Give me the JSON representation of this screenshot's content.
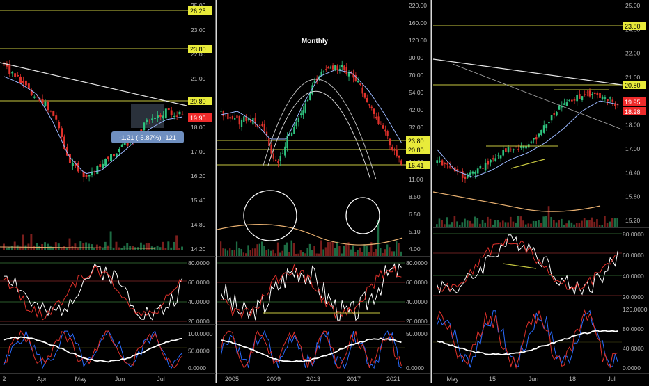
{
  "colors": {
    "background": "#000000",
    "divider": "#d9d9d9",
    "level_line": "#c8c840",
    "trend_line": "#e6e6e6",
    "candle_up": "#2ec27e",
    "candle_down": "#e0312b",
    "ma_fast": "#9bb8ff",
    "ma_slow": "#ffffff",
    "volume_ma": "#e8b070",
    "price_badge": "#e8eb3a",
    "last_price_badge": "#ef2b2b",
    "rsi_line": "#ffffff",
    "rsi_signal": "#e0312b",
    "stoch_k": "#2a6cff",
    "stoch_d": "#e0312b",
    "stoch_ma": "#ffffff",
    "axis_text": "#b8b8b8"
  },
  "chart_data": [
    {
      "id": "left",
      "type": "candlestick",
      "title": "",
      "x_ticks": [
        "2",
        "Apr",
        "May",
        "Jun",
        "Jul"
      ],
      "price_axis": [
        "25.00",
        "23.00",
        "22.00",
        "21.00",
        "19.00",
        "18.00",
        "17.00",
        "16.20",
        "15.40",
        "14.80",
        "14.20"
      ],
      "price_badges": [
        "26.25",
        "23.80",
        "20.80"
      ],
      "last_price": "19.95",
      "measure_label": "-1.21 (-5.87%) -121",
      "levels": [
        26.25,
        23.8,
        20.8
      ],
      "price_range": [
        14.2,
        26.25
      ],
      "rsi_axis": [
        "80.0000",
        "60.0000",
        "40.0000",
        "20.0000"
      ],
      "stoch_axis": [
        "100.0000",
        "50.0000",
        "0.0000"
      ]
    },
    {
      "id": "middle",
      "type": "candlestick",
      "title": "Monthly",
      "x_ticks": [
        "2005",
        "2009",
        "2013",
        "2017",
        "2021"
      ],
      "price_axis": [
        "220.00",
        "160.00",
        "120.00",
        "90.00",
        "70.00",
        "54.00",
        "42.00",
        "32.00",
        "18.00",
        "14.00",
        "11.00",
        "8.50",
        "6.50",
        "5.10",
        "4.00"
      ],
      "price_badges": [
        "23.80",
        "20.80",
        "16.41"
      ],
      "levels": [
        23.8,
        20.8,
        16.41
      ],
      "price_range": [
        4.0,
        220.0
      ],
      "rsi_axis": [
        "80.0000",
        "60.0000",
        "40.0000",
        "20.0000"
      ],
      "stoch_axis": [
        "50.0000",
        "0.0000"
      ]
    },
    {
      "id": "right",
      "type": "candlestick",
      "title": "",
      "x_ticks": [
        "May",
        "15",
        "Jun",
        "18",
        "Jul"
      ],
      "price_axis": [
        "25.00",
        "24.00",
        "22.00",
        "21.00",
        "19.00",
        "18.00",
        "17.00",
        "16.40",
        "15.80",
        "15.20"
      ],
      "price_badges": [
        "23.80",
        "20.80"
      ],
      "last_price": "19.95",
      "countdown": "18:28",
      "levels": [
        23.8,
        20.8
      ],
      "price_range": [
        15.2,
        25.0
      ],
      "rsi_axis": [
        "80.0000",
        "60.0000",
        "40.0000",
        "20.0000"
      ],
      "stoch_axis": [
        "120.0000",
        "80.0000",
        "40.0000",
        "0.0000"
      ]
    }
  ]
}
